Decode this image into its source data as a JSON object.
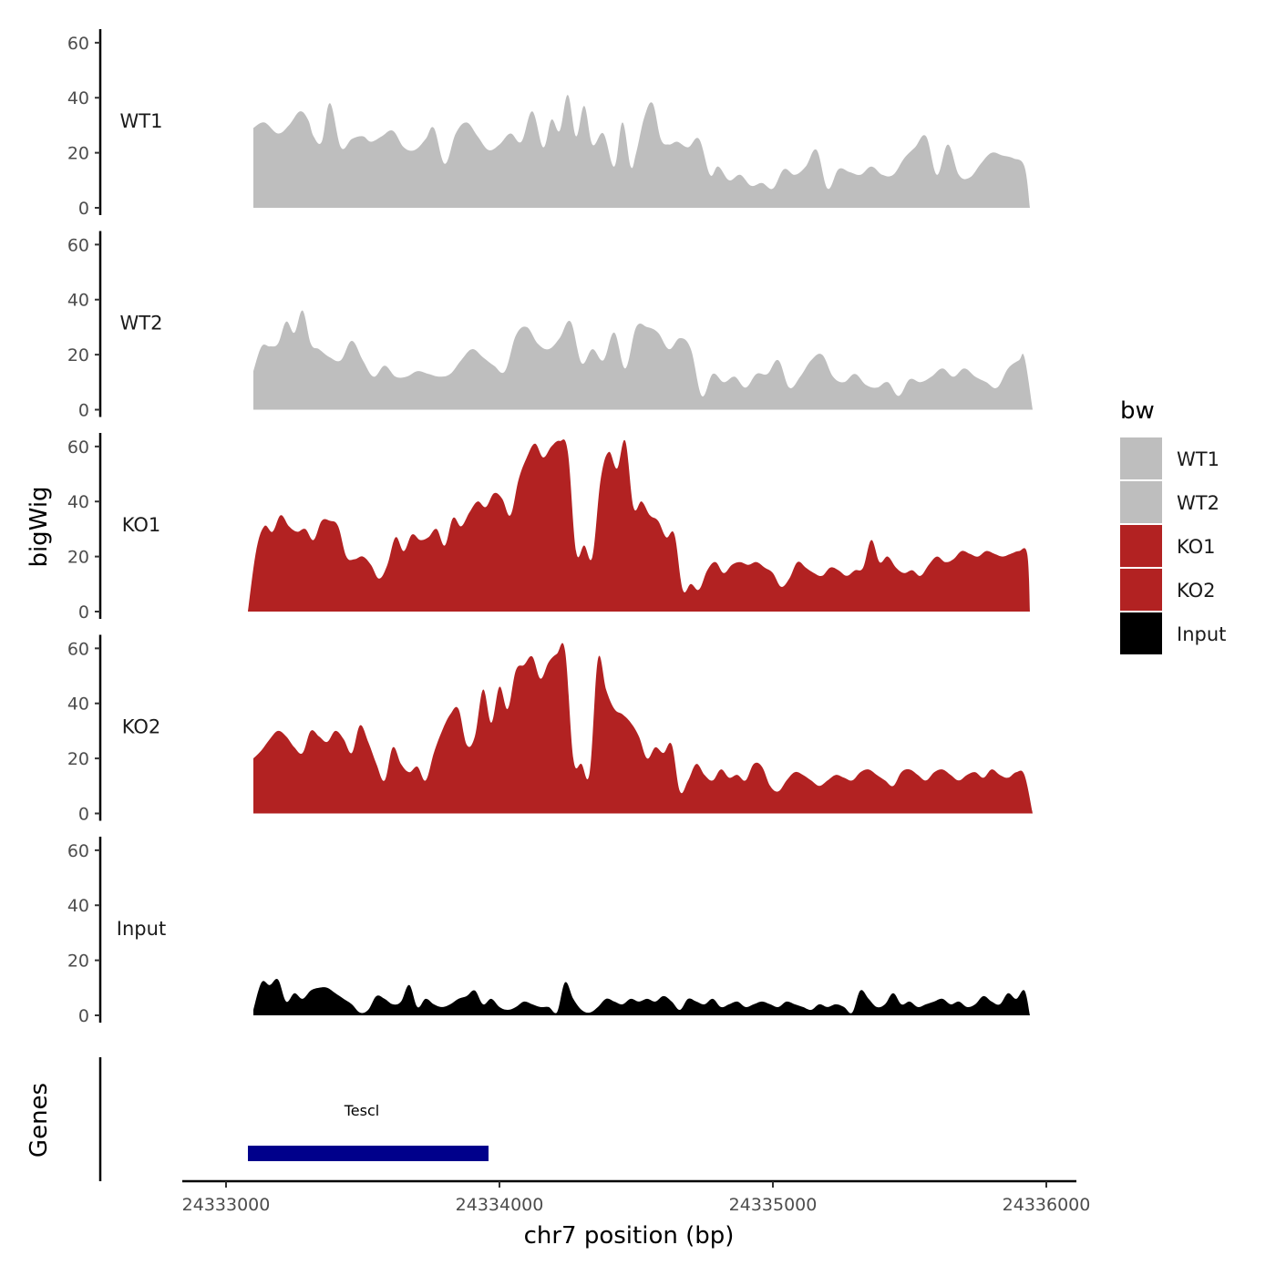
{
  "chart_data": {
    "type": "area",
    "xlabel": "chr7 position (bp)",
    "ylabel": "bigWig",
    "genes_label": "Genes",
    "xlim": [
      24333000,
      24336000
    ],
    "ylim": [
      0,
      62
    ],
    "x_ticks": [
      {
        "value": 24333000,
        "label": "24333000"
      },
      {
        "value": 24334000,
        "label": "24334000"
      },
      {
        "value": 24335000,
        "label": "24335000"
      },
      {
        "value": 24336000,
        "label": "24336000"
      }
    ],
    "y_ticks": [
      {
        "value": 0,
        "label": "0"
      },
      {
        "value": 20,
        "label": "20"
      },
      {
        "value": 40,
        "label": "40"
      },
      {
        "value": 60,
        "label": "60"
      }
    ],
    "legend": {
      "title": "bw",
      "placement": "right",
      "items": [
        {
          "label": "WT1",
          "color": "#bebebe"
        },
        {
          "label": "WT2",
          "color": "#bebebe"
        },
        {
          "label": "KO1",
          "color": "#b22222"
        },
        {
          "label": "KO2",
          "color": "#b22222"
        },
        {
          "label": "Input",
          "color": "#000000"
        }
      ]
    },
    "series": [
      {
        "name": "WT1",
        "color": "#bebebe",
        "x": [
          24333100,
          24333140,
          24333190,
          24333230,
          24333270,
          24333300,
          24333320,
          24333350,
          24333380,
          24333420,
          24333460,
          24333500,
          24333530,
          24333570,
          24333610,
          24333650,
          24333690,
          24333730,
          24333760,
          24333800,
          24333840,
          24333880,
          24333920,
          24333960,
          24334000,
          24334040,
          24334080,
          24334120,
          24334160,
          24334190,
          24334220,
          24334250,
          24334280,
          24334310,
          24334340,
          24334380,
          24334420,
          24334450,
          24334480,
          24334500,
          24334530,
          24334560,
          24334590,
          24334620,
          24334650,
          24334690,
          24334730,
          24334770,
          24334800,
          24334840,
          24334880,
          24334920,
          24334960,
          24335000,
          24335040,
          24335080,
          24335120,
          24335160,
          24335200,
          24335240,
          24335280,
          24335320,
          24335360,
          24335400,
          24335440,
          24335480,
          24335520,
          24335560,
          24335600,
          24335640,
          24335680,
          24335720,
          24335760,
          24335800,
          24335840,
          24335880,
          24335920,
          24335940
        ],
        "y": [
          29,
          31,
          27,
          30,
          35,
          32,
          26,
          24,
          38,
          22,
          25,
          26,
          24,
          26,
          28,
          22,
          21,
          25,
          29,
          16,
          27,
          31,
          26,
          21,
          23,
          27,
          24,
          35,
          22,
          32,
          28,
          41,
          26,
          37,
          23,
          27,
          15,
          31,
          15,
          20,
          33,
          38,
          25,
          23,
          24,
          22,
          25,
          12,
          15,
          10,
          12,
          8,
          9,
          7,
          14,
          12,
          15,
          21,
          7,
          14,
          13,
          12,
          15,
          12,
          12,
          18,
          22,
          26,
          12,
          23,
          12,
          11,
          16,
          20,
          19,
          18,
          15,
          0
        ]
      },
      {
        "name": "WT2",
        "color": "#bebebe",
        "x": [
          24333100,
          24333130,
          24333160,
          24333190,
          24333220,
          24333250,
          24333280,
          24333310,
          24333340,
          24333380,
          24333420,
          24333460,
          24333500,
          24333540,
          24333580,
          24333620,
          24333660,
          24333700,
          24333740,
          24333780,
          24333820,
          24333860,
          24333900,
          24333940,
          24333980,
          24334020,
          24334060,
          24334100,
          24334140,
          24334180,
          24334220,
          24334260,
          24334300,
          24334340,
          24334380,
          24334420,
          24334460,
          24334500,
          24334540,
          24334580,
          24334620,
          24334660,
          24334700,
          24334740,
          24334780,
          24334820,
          24334860,
          24334900,
          24334940,
          24334980,
          24335020,
          24335060,
          24335100,
          24335140,
          24335180,
          24335220,
          24335260,
          24335300,
          24335340,
          24335380,
          24335420,
          24335460,
          24335500,
          24335540,
          24335580,
          24335620,
          24335660,
          24335700,
          24335740,
          24335780,
          24335820,
          24335860,
          24335900,
          24335920,
          24335950
        ],
        "y": [
          14,
          23,
          23,
          24,
          32,
          28,
          36,
          24,
          22,
          19,
          18,
          25,
          18,
          12,
          16,
          12,
          12,
          14,
          13,
          12,
          13,
          18,
          22,
          19,
          16,
          14,
          27,
          30,
          24,
          22,
          26,
          32,
          17,
          22,
          18,
          28,
          15,
          30,
          30,
          28,
          22,
          26,
          22,
          5,
          13,
          10,
          12,
          8,
          13,
          13,
          18,
          8,
          12,
          18,
          20,
          12,
          10,
          13,
          9,
          8,
          10,
          5,
          11,
          10,
          12,
          15,
          12,
          15,
          12,
          10,
          8,
          15,
          18,
          19,
          0
        ]
      },
      {
        "name": "KO1",
        "color": "#b22222",
        "x": [
          24333080,
          24333110,
          24333140,
          24333170,
          24333200,
          24333230,
          24333260,
          24333290,
          24333320,
          24333350,
          24333380,
          24333410,
          24333440,
          24333470,
          24333500,
          24333530,
          24333560,
          24333590,
          24333620,
          24333650,
          24333680,
          24333710,
          24333740,
          24333770,
          24333800,
          24333830,
          24333860,
          24333890,
          24333920,
          24333950,
          24333980,
          24334010,
          24334040,
          24334070,
          24334100,
          24334130,
          24334160,
          24334190,
          24334220,
          24334250,
          24334280,
          24334310,
          24334340,
          24334370,
          24334400,
          24334430,
          24334460,
          24334490,
          24334520,
          24334550,
          24334580,
          24334610,
          24334640,
          24334670,
          24334700,
          24334730,
          24334760,
          24334790,
          24334820,
          24334850,
          24334880,
          24334910,
          24334940,
          24334970,
          24335000,
          24335030,
          24335060,
          24335090,
          24335120,
          24335150,
          24335180,
          24335210,
          24335240,
          24335270,
          24335300,
          24335330,
          24335360,
          24335390,
          24335420,
          24335450,
          24335480,
          24335510,
          24335540,
          24335570,
          24335600,
          24335630,
          24335660,
          24335690,
          24335720,
          24335750,
          24335780,
          24335810,
          24335840,
          24335870,
          24335900,
          24335930,
          24335940
        ],
        "y": [
          0,
          22,
          31,
          29,
          35,
          31,
          29,
          30,
          26,
          33,
          33,
          31,
          20,
          19,
          20,
          17,
          12,
          17,
          27,
          22,
          28,
          26,
          27,
          30,
          24,
          34,
          31,
          36,
          40,
          38,
          43,
          41,
          35,
          48,
          56,
          61,
          56,
          60,
          62,
          58,
          22,
          24,
          20,
          48,
          58,
          52,
          62,
          38,
          40,
          35,
          33,
          27,
          28,
          8,
          10,
          8,
          15,
          18,
          14,
          17,
          18,
          17,
          18,
          16,
          14,
          9,
          12,
          18,
          16,
          14,
          13,
          16,
          15,
          13,
          15,
          16,
          26,
          18,
          20,
          16,
          14,
          15,
          13,
          17,
          20,
          18,
          19,
          22,
          21,
          20,
          22,
          21,
          20,
          21,
          22,
          21,
          0
        ]
      },
      {
        "name": "KO2",
        "color": "#b22222",
        "x": [
          24333100,
          24333130,
          24333160,
          24333190,
          24333220,
          24333250,
          24333280,
          24333310,
          24333340,
          24333370,
          24333400,
          24333430,
          24333460,
          24333490,
          24333520,
          24333550,
          24333580,
          24333610,
          24333640,
          24333670,
          24333700,
          24333730,
          24333760,
          24333790,
          24333820,
          24333850,
          24333880,
          24333910,
          24333940,
          24333970,
          24334000,
          24334030,
          24334060,
          24334090,
          24334120,
          24334150,
          24334180,
          24334210,
          24334240,
          24334270,
          24334300,
          24334330,
          24334360,
          24334390,
          24334420,
          24334450,
          24334480,
          24334510,
          24334540,
          24334570,
          24334600,
          24334630,
          24334660,
          24334690,
          24334720,
          24334750,
          24334780,
          24334810,
          24334840,
          24334870,
          24334900,
          24334930,
          24334960,
          24334990,
          24335020,
          24335050,
          24335080,
          24335110,
          24335140,
          24335170,
          24335200,
          24335230,
          24335260,
          24335290,
          24335320,
          24335350,
          24335380,
          24335410,
          24335440,
          24335470,
          24335500,
          24335530,
          24335560,
          24335590,
          24335620,
          24335650,
          24335680,
          24335710,
          24335740,
          24335770,
          24335800,
          24335830,
          24335860,
          24335890,
          24335920,
          24335950
        ],
        "y": [
          20,
          23,
          27,
          30,
          28,
          24,
          22,
          30,
          28,
          26,
          30,
          27,
          22,
          32,
          26,
          18,
          12,
          24,
          18,
          15,
          17,
          12,
          22,
          30,
          36,
          38,
          25,
          28,
          45,
          33,
          46,
          38,
          52,
          54,
          57,
          49,
          55,
          58,
          59,
          20,
          18,
          15,
          56,
          45,
          38,
          36,
          33,
          28,
          20,
          24,
          22,
          25,
          8,
          12,
          18,
          14,
          12,
          16,
          13,
          14,
          12,
          18,
          17,
          10,
          8,
          12,
          15,
          14,
          12,
          10,
          12,
          14,
          13,
          12,
          15,
          16,
          14,
          12,
          10,
          15,
          16,
          14,
          12,
          15,
          16,
          14,
          12,
          14,
          15,
          13,
          16,
          14,
          13,
          15,
          14,
          0
        ]
      },
      {
        "name": "Input",
        "color": "#000000",
        "x": [
          24333100,
          24333130,
          24333160,
          24333190,
          24333220,
          24333250,
          24333280,
          24333310,
          24333340,
          24333370,
          24333400,
          24333430,
          24333460,
          24333490,
          24333520,
          24333550,
          24333580,
          24333610,
          24333640,
          24333670,
          24333700,
          24333730,
          24333760,
          24333790,
          24333820,
          24333850,
          24333880,
          24333910,
          24333940,
          24333970,
          24334000,
          24334030,
          24334060,
          24334090,
          24334120,
          24334150,
          24334180,
          24334210,
          24334240,
          24334270,
          24334300,
          24334330,
          24334360,
          24334390,
          24334420,
          24334450,
          24334480,
          24334510,
          24334540,
          24334570,
          24334600,
          24334630,
          24334660,
          24334690,
          24334720,
          24334750,
          24334780,
          24334810,
          24334840,
          24334870,
          24334900,
          24334930,
          24334960,
          24334990,
          24335020,
          24335050,
          24335080,
          24335110,
          24335140,
          24335170,
          24335200,
          24335230,
          24335260,
          24335290,
          24335320,
          24335350,
          24335380,
          24335410,
          24335440,
          24335470,
          24335500,
          24335530,
          24335560,
          24335590,
          24335620,
          24335650,
          24335680,
          24335710,
          24335740,
          24335770,
          24335800,
          24335830,
          24335860,
          24335890,
          24335920,
          24335940
        ],
        "y": [
          2,
          12,
          11,
          13,
          5,
          8,
          6,
          9,
          10,
          10,
          8,
          6,
          4,
          1,
          2,
          7,
          6,
          4,
          5,
          11,
          3,
          6,
          4,
          3,
          4,
          6,
          7,
          9,
          4,
          6,
          3,
          2,
          3,
          5,
          4,
          3,
          3,
          1,
          12,
          6,
          2,
          1,
          3,
          6,
          5,
          4,
          6,
          5,
          6,
          5,
          7,
          5,
          2,
          6,
          5,
          4,
          6,
          3,
          4,
          5,
          3,
          4,
          5,
          4,
          3,
          5,
          4,
          3,
          2,
          4,
          3,
          4,
          3,
          1,
          9,
          6,
          3,
          4,
          8,
          4,
          5,
          3,
          4,
          5,
          6,
          4,
          5,
          3,
          4,
          7,
          5,
          4,
          8,
          6,
          9,
          0
        ]
      }
    ],
    "gene_track": {
      "genes": [
        {
          "name": "Tescl",
          "start": 24333080,
          "end": 24333960,
          "color": "#00008b"
        }
      ]
    }
  }
}
